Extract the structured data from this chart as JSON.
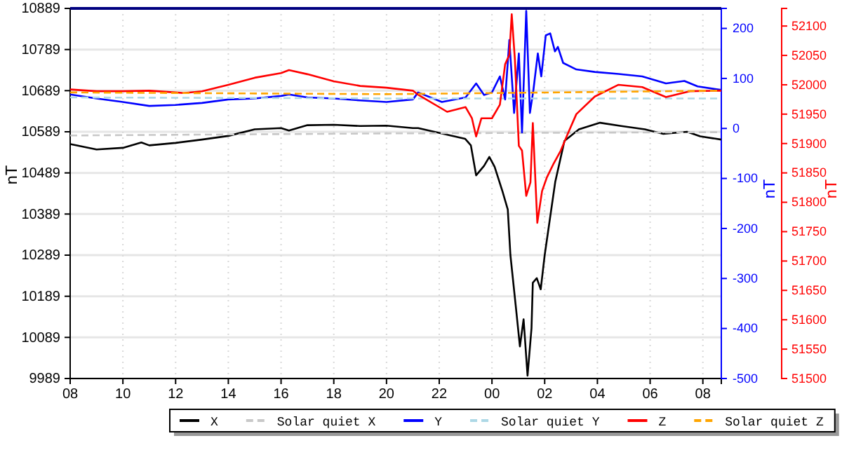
{
  "chart_data": {
    "type": "line",
    "ylabel": "nT",
    "y2label": "nT",
    "y3label": "nT",
    "xlim": [
      8,
      32.7
    ],
    "xticks": [
      {
        "value": 8,
        "label": "08"
      },
      {
        "value": 10,
        "label": "10"
      },
      {
        "value": 12,
        "label": "12"
      },
      {
        "value": 14,
        "label": "14"
      },
      {
        "value": 16,
        "label": "16"
      },
      {
        "value": 18,
        "label": "18"
      },
      {
        "value": 20,
        "label": "20"
      },
      {
        "value": 22,
        "label": "22"
      },
      {
        "value": 24,
        "label": "00"
      },
      {
        "value": 26,
        "label": "02"
      },
      {
        "value": 28,
        "label": "04"
      },
      {
        "value": 30,
        "label": "06"
      },
      {
        "value": 32,
        "label": "08"
      }
    ],
    "ylim": [
      9989,
      10889
    ],
    "yticks": [
      9989,
      10089,
      10189,
      10289,
      10389,
      10489,
      10589,
      10689,
      10789,
      10889
    ],
    "y2lim": [
      -500,
      240
    ],
    "y2ticks": [
      -500,
      -400,
      -300,
      -200,
      -100,
      0,
      100,
      200
    ],
    "y3lim": [
      51500,
      52130
    ],
    "y3ticks": [
      51500,
      51550,
      51600,
      51650,
      51700,
      51750,
      51800,
      51850,
      51900,
      51950,
      52000,
      52050,
      52100
    ],
    "grid": true,
    "legend": "bottom",
    "series": [
      {
        "name": "X",
        "color": "#000000",
        "line_style": "solid",
        "x": [
          8,
          9,
          10,
          10.7,
          11,
          12,
          13,
          14,
          15,
          16,
          16.3,
          17,
          18,
          19,
          20,
          21,
          21.2,
          22.98,
          23.2,
          23.4,
          23.7,
          23.9,
          24.1,
          24.4,
          24.6,
          24.7,
          24.9,
          25.06,
          25.2,
          25.35,
          25.5,
          25.55,
          25.7,
          25.85,
          26,
          26.2,
          26.4,
          26.75,
          27.3,
          28.1,
          28.9,
          29.8,
          30.5,
          31.4,
          31.9,
          32.7
        ],
        "values": [
          10559,
          10546,
          10550,
          10563,
          10556,
          10562,
          10570,
          10579,
          10595,
          10598,
          10592,
          10605,
          10606,
          10603,
          10604,
          10598,
          10598,
          10572,
          10556,
          10483,
          10506,
          10528,
          10504,
          10444,
          10400,
          10289,
          10167,
          10067,
          10133,
          9996,
          10111,
          10222,
          10233,
          10206,
          10289,
          10378,
          10467,
          10567,
          10595,
          10611,
          10603,
          10595,
          10584,
          10589,
          10578,
          10570
        ]
      },
      {
        "name": "Solar quiet X",
        "color": "#c8c8c8",
        "line_style": "dashed",
        "x": [
          8,
          20,
          32.7
        ],
        "values": [
          10580,
          10585,
          10588
        ]
      },
      {
        "name": "Y",
        "color": "#0000ff",
        "axis": "y2",
        "line_style": "solid",
        "x": [
          8,
          9,
          10,
          11,
          12,
          13,
          14,
          15,
          16,
          16.3,
          17,
          18,
          19,
          20,
          21,
          21.2,
          22.1,
          23,
          23.4,
          23.7,
          24,
          24.3,
          24.5,
          24.66,
          24.84,
          25.02,
          25.14,
          25.3,
          25.44,
          25.57,
          25.74,
          25.87,
          26.04,
          26.21,
          26.39,
          26.5,
          26.7,
          27.2,
          27.9,
          28.8,
          29.7,
          30.6,
          31.3,
          31.8,
          32.7
        ],
        "values": [
          68,
          60,
          53,
          45,
          47,
          51,
          58,
          60,
          65,
          68,
          62,
          60,
          56,
          53,
          58,
          72,
          53,
          62,
          90,
          67,
          72,
          104,
          58,
          177,
          31,
          150,
          -8,
          235,
          31,
          76,
          150,
          104,
          186,
          190,
          154,
          163,
          131,
          118,
          113,
          109,
          104,
          90,
          95,
          84,
          77
        ]
      },
      {
        "name": "Solar quiet Y",
        "color": "#add8e6",
        "axis": "y2",
        "line_style": "dashed",
        "x": [
          8,
          20,
          32.7
        ],
        "values": [
          62,
          60,
          60
        ]
      },
      {
        "name": "Z",
        "color": "#ff0000",
        "axis": "y3",
        "line_style": "solid",
        "x": [
          8,
          9,
          10,
          11,
          12,
          12.3,
          13,
          14,
          15,
          16,
          16.3,
          17,
          18,
          19,
          20,
          21,
          21.2,
          22.3,
          23,
          23.24,
          23.4,
          23.6,
          24,
          24.3,
          24.5,
          24.66,
          24.75,
          24.87,
          25.02,
          25.14,
          25.3,
          25.46,
          25.55,
          25.72,
          25.9,
          26.08,
          26.34,
          26.61,
          26.9,
          27.2,
          27.9,
          28.8,
          29.7,
          30.6,
          31.5,
          32.7
        ],
        "values": [
          51992,
          51989,
          51989,
          51990,
          51987,
          51986,
          51989,
          52000,
          52012,
          52020,
          52025,
          52018,
          52006,
          51998,
          51995,
          51990,
          51983,
          51954,
          51962,
          51943,
          51912,
          51943,
          51943,
          51966,
          52035,
          52051,
          52120,
          52043,
          51896,
          51888,
          51811,
          51834,
          51935,
          51765,
          51819,
          51842,
          51866,
          51888,
          51919,
          51950,
          51980,
          52000,
          51996,
          51979,
          51989,
          51990
        ]
      },
      {
        "name": "Solar quiet Z",
        "color": "#ffa500",
        "axis": "y3",
        "line_style": "dashed",
        "x": [
          8,
          20,
          32.7
        ],
        "values": [
          51987,
          51984,
          51990
        ]
      }
    ]
  }
}
